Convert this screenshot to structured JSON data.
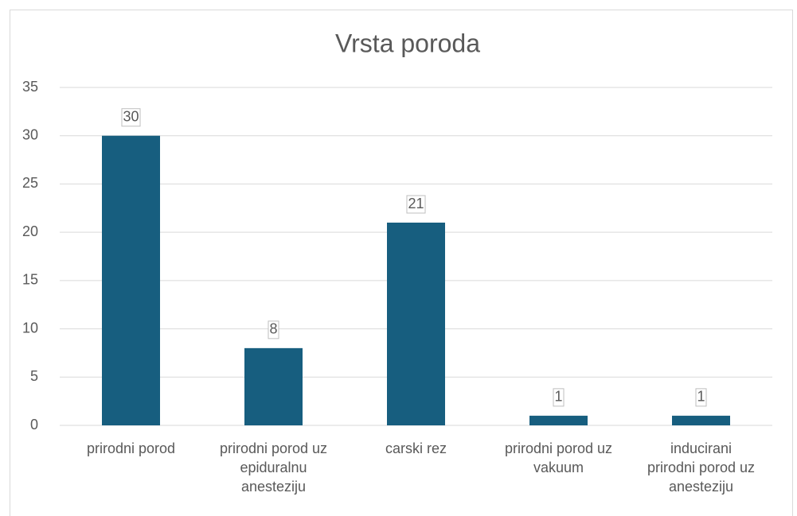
{
  "chart_data": {
    "type": "bar",
    "title": "Vrsta poroda",
    "categories": [
      "prirodni porod",
      "prirodni porod uz epiduralnu anesteziju",
      "carski rez",
      "prirodni porod uz vakuum",
      "inducirani prirodni porod uz anesteziju"
    ],
    "values": [
      30,
      8,
      21,
      1,
      1
    ],
    "color": "#175e7f",
    "ylim": [
      0,
      35
    ],
    "yticks": [
      0,
      5,
      10,
      15,
      20,
      25,
      30,
      35
    ],
    "grid": true
  }
}
